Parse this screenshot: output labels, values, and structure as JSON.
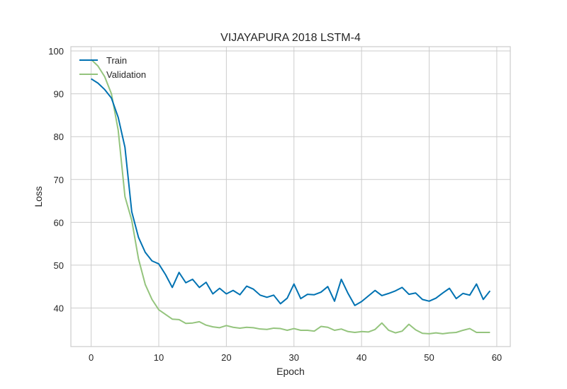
{
  "chart_data": {
    "type": "line",
    "title": "VIJAYAPURA 2018 LSTM-4",
    "xlabel": "Epoch",
    "ylabel": "Loss",
    "xlim": [
      -3,
      62
    ],
    "ylim": [
      31,
      101
    ],
    "x_ticks": [
      0,
      10,
      20,
      30,
      40,
      50,
      60
    ],
    "y_ticks": [
      40,
      50,
      60,
      70,
      80,
      90,
      100
    ],
    "grid": true,
    "legend_position": "top-left",
    "series": [
      {
        "name": "Train",
        "color": "#0072B2",
        "values": [
          93.5,
          92.5,
          91.0,
          89.0,
          84.5,
          77.5,
          62.5,
          56.5,
          53.0,
          51.0,
          50.3,
          47.8,
          44.8,
          48.3,
          45.9,
          46.7,
          44.8,
          46.0,
          43.3,
          44.6,
          43.3,
          44.1,
          43.1,
          45.1,
          44.4,
          43.0,
          42.5,
          43.0,
          41.0,
          42.3,
          45.6,
          42.2,
          43.2,
          43.1,
          43.7,
          45.0,
          41.6,
          46.7,
          43.4,
          40.6,
          41.5,
          42.8,
          44.1,
          42.9,
          43.4,
          44.0,
          44.8,
          43.2,
          43.5,
          42.0,
          41.6,
          42.3,
          43.5,
          44.6,
          42.2,
          43.4,
          43.0,
          45.6,
          42.0,
          44.0
        ]
      },
      {
        "name": "Validation",
        "color": "#94C47D",
        "values": [
          98.0,
          96.5,
          94.0,
          90.0,
          81.5,
          66.0,
          60.5,
          51.5,
          45.5,
          42.0,
          39.6,
          38.5,
          37.4,
          37.3,
          36.4,
          36.5,
          36.8,
          36.0,
          35.6,
          35.4,
          35.9,
          35.5,
          35.3,
          35.5,
          35.4,
          35.1,
          35.0,
          35.3,
          35.2,
          34.8,
          35.2,
          34.8,
          34.8,
          34.6,
          35.7,
          35.5,
          34.8,
          35.1,
          34.5,
          34.3,
          34.5,
          34.4,
          35.0,
          36.5,
          34.8,
          34.2,
          34.6,
          36.2,
          34.9,
          34.1,
          34.0,
          34.2,
          34.0,
          34.2,
          34.3,
          34.8,
          35.2,
          34.3,
          34.3,
          34.3
        ]
      }
    ]
  }
}
